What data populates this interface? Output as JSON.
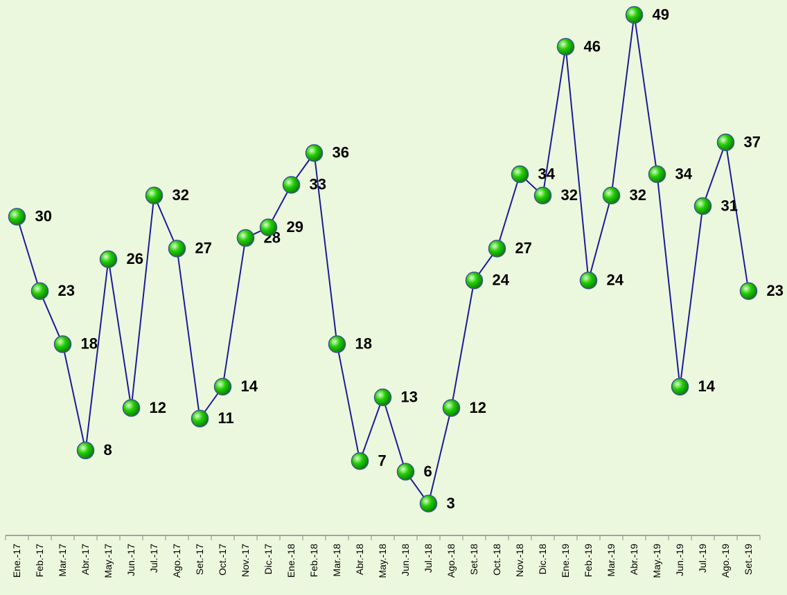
{
  "chart_data": {
    "type": "line",
    "categories": [
      "Ene.-17",
      "Feb.-17",
      "Mar.-17",
      "Abr.-17",
      "May.-17",
      "Jun.-17",
      "Jul.-17",
      "Ago.-17",
      "Set.-17",
      "Oct.-17",
      "Nov.-17",
      "Dic.-17",
      "Ene.-18",
      "Feb.-18",
      "Mar.-18",
      "Abr.-18",
      "May.-18",
      "Jun.-18",
      "Jul.-18",
      "Ago.-18",
      "Set.-18",
      "Oct.-18",
      "Nov.-18",
      "Dic.-18",
      "Ene.-19",
      "Feb.-19",
      "Mar.-19",
      "Abr.-19",
      "May.-19",
      "Jun.-19",
      "Jul.-19",
      "Ago.-19",
      "Set.-19"
    ],
    "values": [
      30,
      23,
      18,
      8,
      26,
      12,
      32,
      27,
      11,
      14,
      28,
      29,
      33,
      36,
      18,
      7,
      13,
      6,
      3,
      12,
      24,
      27,
      34,
      32,
      46,
      24,
      32,
      49,
      34,
      14,
      31,
      37,
      23
    ],
    "color": "#1a1a99",
    "marker_color": "#22cc00",
    "ylim": [
      0,
      50.4
    ]
  }
}
